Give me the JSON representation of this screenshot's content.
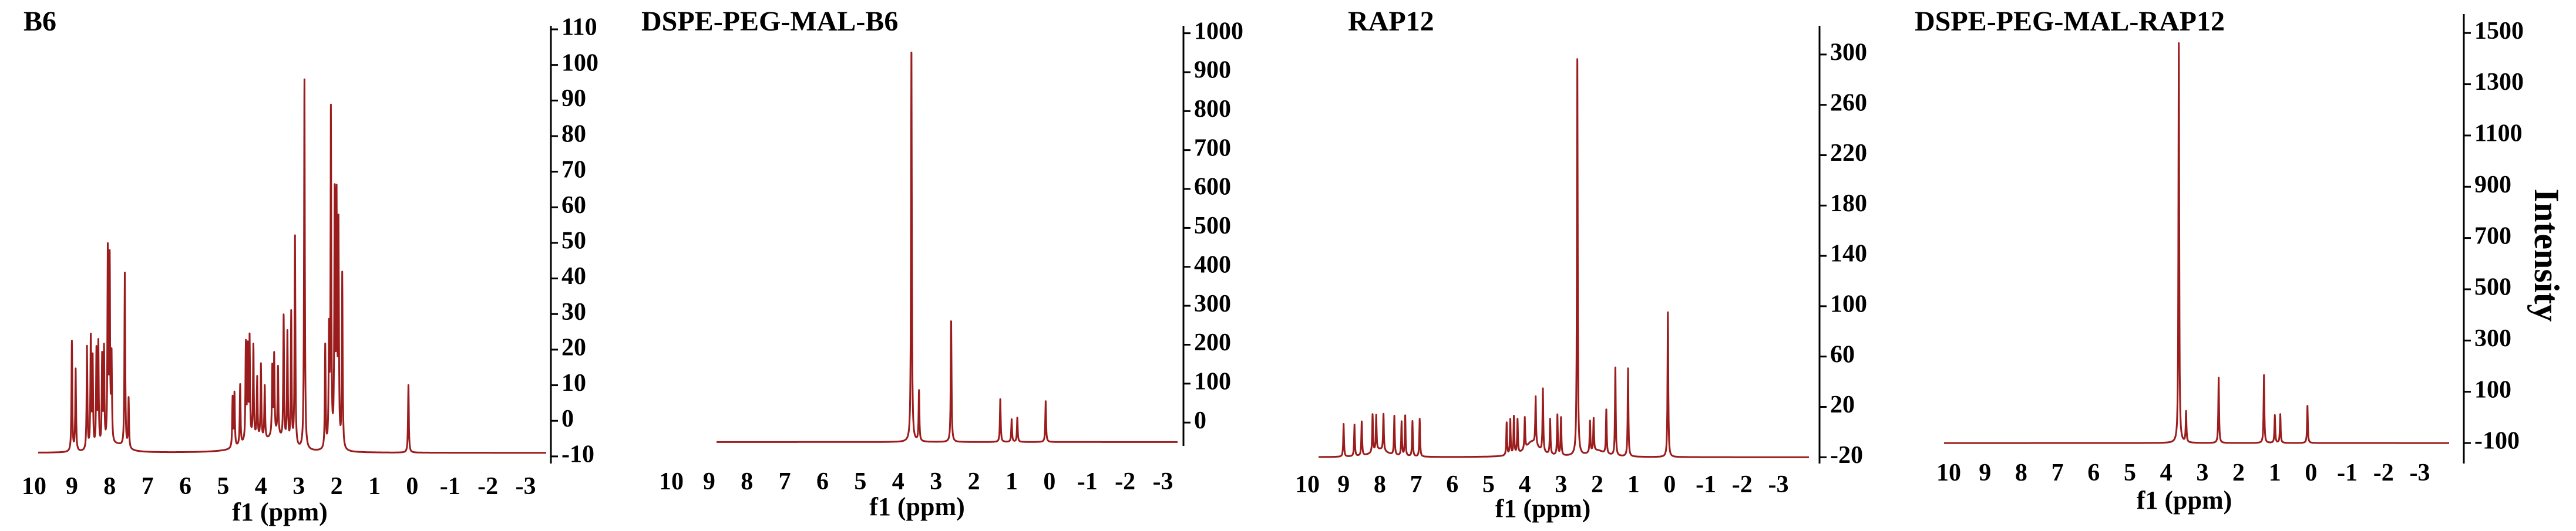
{
  "colors": {
    "spectrum": "#9b1c1c",
    "axis": "#000000",
    "background": "#ffffff"
  },
  "figure": {
    "y_axis_label": "Intensity"
  },
  "chart_data": [
    {
      "type": "line",
      "title": "B6",
      "xlabel": "f1 (ppm)",
      "x_reversed": true,
      "xlim": [
        10,
        -3
      ],
      "x_ticks": [
        "10",
        "9",
        "8",
        "7",
        "6",
        "5",
        "4",
        "3",
        "2",
        "1",
        "0",
        "-1",
        "-2",
        "-3"
      ],
      "ylim": [
        -12,
        110
      ],
      "y_ticks": [
        "110",
        "100",
        "90",
        "80",
        "70",
        "60",
        "50",
        "40",
        "30",
        "20",
        "10",
        "0",
        "-10"
      ],
      "baseline": -9,
      "peaks": [
        [
          9.0,
          22
        ],
        [
          8.9,
          14
        ],
        [
          8.6,
          20
        ],
        [
          8.5,
          22
        ],
        [
          8.45,
          16
        ],
        [
          8.35,
          18
        ],
        [
          8.3,
          20
        ],
        [
          8.2,
          16
        ],
        [
          8.15,
          18
        ],
        [
          8.05,
          45
        ],
        [
          8.0,
          42
        ],
        [
          7.95,
          15
        ],
        [
          7.6,
          40
        ],
        [
          7.5,
          5
        ],
        [
          4.75,
          5
        ],
        [
          4.7,
          6
        ],
        [
          4.55,
          8
        ],
        [
          4.4,
          18
        ],
        [
          4.35,
          16
        ],
        [
          4.3,
          19
        ],
        [
          4.2,
          17
        ],
        [
          4.1,
          8
        ],
        [
          4.0,
          12
        ],
        [
          3.9,
          6
        ],
        [
          3.7,
          10
        ],
        [
          3.65,
          13
        ],
        [
          3.55,
          10
        ],
        [
          3.4,
          26
        ],
        [
          3.3,
          22
        ],
        [
          3.2,
          28
        ],
        [
          3.1,
          50
        ],
        [
          2.85,
          95
        ],
        [
          2.3,
          20
        ],
        [
          2.2,
          22
        ],
        [
          2.15,
          85
        ],
        [
          2.05,
          60
        ],
        [
          2.0,
          58
        ],
        [
          1.95,
          52
        ],
        [
          1.85,
          40
        ],
        [
          0.1,
          10
        ]
      ],
      "broad": [
        [
          7.8,
          2,
          0.25
        ],
        [
          3.6,
          4,
          0.25
        ],
        [
          4.2,
          3,
          0.35
        ]
      ]
    },
    {
      "type": "line",
      "title": "DSPE-PEG-MAL-B6",
      "xlabel": "f1 (ppm)",
      "x_reversed": true,
      "xlim": [
        10,
        -3
      ],
      "x_ticks": [
        "10",
        "9",
        "8",
        "7",
        "6",
        "5",
        "4",
        "3",
        "2",
        "1",
        "0",
        "-1",
        "-2",
        "-3"
      ],
      "ylim": [
        -60,
        1010
      ],
      "y_ticks": [
        "1000",
        "900",
        "800",
        "700",
        "600",
        "500",
        "400",
        "300",
        "200",
        "100",
        "0"
      ],
      "baseline": -50,
      "peaks": [
        [
          3.65,
          950
        ],
        [
          3.45,
          80
        ],
        [
          2.6,
          260
        ],
        [
          1.3,
          60
        ],
        [
          1.0,
          8
        ],
        [
          0.85,
          12
        ],
        [
          0.1,
          55
        ]
      ],
      "broad": []
    },
    {
      "type": "line",
      "title": "RAP12",
      "xlabel": "f1 (ppm)",
      "x_reversed": true,
      "xlim": [
        10,
        -3
      ],
      "x_ticks": [
        "10",
        "9",
        "8",
        "7",
        "6",
        "5",
        "4",
        "3",
        "2",
        "1",
        "0",
        "-1",
        "-2",
        "-3"
      ],
      "ylim": [
        -25,
        320
      ],
      "y_ticks": [
        "300",
        "260",
        "220",
        "180",
        "140",
        "100",
        "60",
        "20",
        "-20"
      ],
      "baseline": -20,
      "peaks": [
        [
          9.0,
          6
        ],
        [
          8.7,
          5
        ],
        [
          8.5,
          7
        ],
        [
          8.2,
          10
        ],
        [
          8.1,
          8
        ],
        [
          7.9,
          9
        ],
        [
          7.6,
          11
        ],
        [
          7.4,
          7
        ],
        [
          7.3,
          12
        ],
        [
          7.1,
          8
        ],
        [
          6.9,
          10
        ],
        [
          4.5,
          6
        ],
        [
          4.4,
          8
        ],
        [
          4.3,
          10
        ],
        [
          4.2,
          7
        ],
        [
          4.0,
          5
        ],
        [
          3.7,
          18
        ],
        [
          3.5,
          30
        ],
        [
          3.3,
          8
        ],
        [
          3.1,
          12
        ],
        [
          3.0,
          10
        ],
        [
          2.55,
          295
        ],
        [
          2.2,
          5
        ],
        [
          2.1,
          6
        ],
        [
          1.75,
          15
        ],
        [
          1.5,
          50
        ],
        [
          1.15,
          50
        ],
        [
          0.05,
          95
        ]
      ],
      "broad": [
        [
          8.0,
          6,
          0.25
        ],
        [
          3.8,
          12,
          0.22
        ],
        [
          2.0,
          5,
          0.25
        ]
      ]
    },
    {
      "type": "line",
      "title": "DSPE-PEG-MAL-RAP12",
      "xlabel": "f1 (ppm)",
      "x_reversed": true,
      "xlim": [
        10,
        -3
      ],
      "x_ticks": [
        "10",
        "9",
        "8",
        "7",
        "6",
        "5",
        "4",
        "3",
        "2",
        "1",
        "0",
        "-1",
        "-2",
        "-3"
      ],
      "ylim": [
        -180,
        1560
      ],
      "y_ticks": [
        "1500",
        "1300",
        "1100",
        "900",
        "700",
        "500",
        "300",
        "100",
        "-100"
      ],
      "baseline": -100,
      "peaks": [
        [
          3.65,
          1460
        ],
        [
          3.45,
          20
        ],
        [
          2.55,
          155
        ],
        [
          1.3,
          165
        ],
        [
          1.0,
          8
        ],
        [
          0.85,
          12
        ],
        [
          0.1,
          45
        ]
      ],
      "broad": []
    }
  ]
}
